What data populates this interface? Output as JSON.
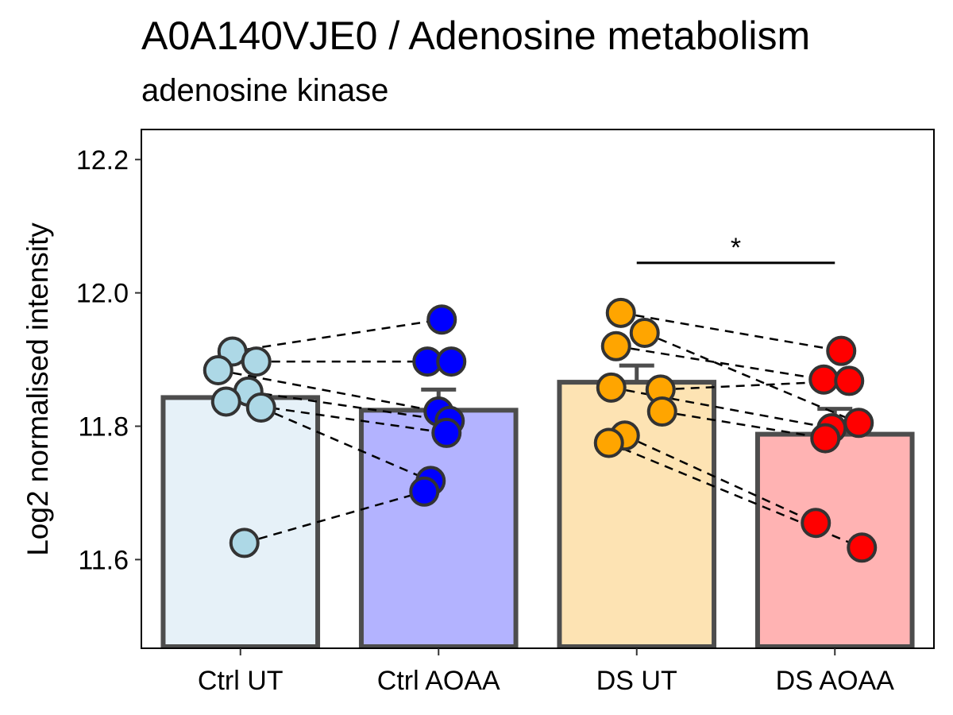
{
  "chart_data": {
    "type": "bar",
    "title": "A0A140VJE0 / Adenosine metabolism",
    "subtitle": "adenosine kinase",
    "xlabel": "",
    "ylabel": "Log2 normalised intensity",
    "ylim": [
      11.467,
      12.245
    ],
    "yticks": [
      11.6,
      11.8,
      12.0,
      12.2
    ],
    "ytick_labels": [
      "11.6",
      "11.8",
      "12.0",
      "12.2"
    ],
    "categories": [
      "Ctrl UT",
      "Ctrl AOAA",
      "DS UT",
      "DS AOAA"
    ],
    "values": [
      11.843,
      11.824,
      11.866,
      11.788
    ],
    "error_upper": [
      null,
      11.855,
      11.891,
      11.826
    ],
    "bar_fill": [
      "#e6f1f8",
      "#b3b3ff",
      "#fde3b3",
      "#ffb3b3"
    ],
    "bar_stroke": "#4d4d4d",
    "point_colors": [
      "#add8e6",
      "#0000ff",
      "#ffa500",
      "#ff0000"
    ],
    "points": [
      [
        11.912,
        11.897,
        11.884,
        11.852,
        11.837,
        11.828,
        11.625
      ],
      [
        11.96,
        11.897,
        11.897,
        11.822,
        11.808,
        11.79,
        11.718,
        11.702
      ],
      [
        11.97,
        11.94,
        11.92,
        11.858,
        11.855,
        11.822,
        11.786,
        11.775
      ],
      [
        11.913,
        11.87,
        11.868,
        11.805,
        11.797,
        11.782,
        11.655,
        11.618
      ]
    ],
    "pairs": [
      [
        0,
        0,
        1,
        0
      ],
      [
        0,
        1,
        1,
        1
      ],
      [
        0,
        2,
        1,
        3
      ],
      [
        0,
        3,
        1,
        4
      ],
      [
        0,
        4,
        1,
        5
      ],
      [
        0,
        5,
        1,
        6
      ],
      [
        0,
        6,
        1,
        7
      ],
      [
        2,
        0,
        3,
        0
      ],
      [
        2,
        1,
        3,
        3
      ],
      [
        2,
        2,
        3,
        1
      ],
      [
        2,
        3,
        3,
        4
      ],
      [
        2,
        4,
        3,
        2
      ],
      [
        2,
        5,
        3,
        5
      ],
      [
        2,
        6,
        3,
        6
      ],
      [
        2,
        7,
        3,
        7
      ]
    ],
    "significance": {
      "from": 2,
      "to": 3,
      "y": 12.045,
      "label": "*"
    },
    "grid": false,
    "legend": "none"
  }
}
